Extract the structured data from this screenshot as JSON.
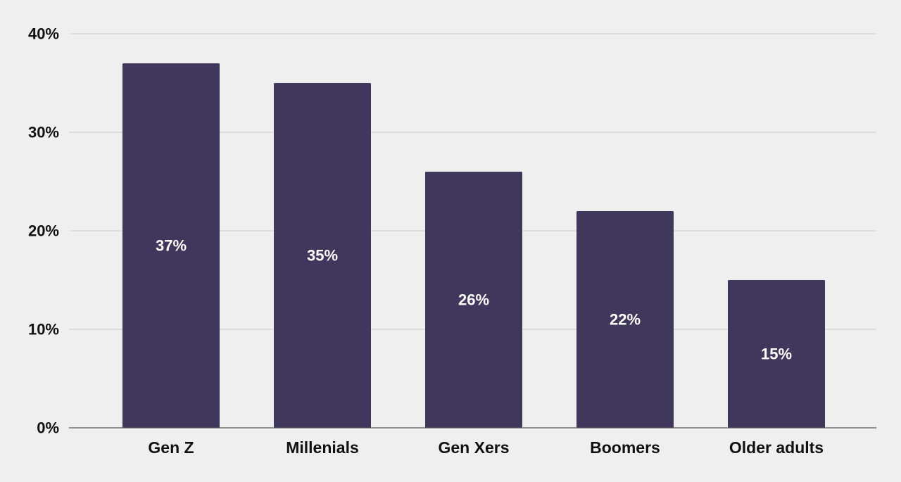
{
  "chart_data": {
    "type": "bar",
    "categories": [
      "Gen Z",
      "Millenials",
      "Gen Xers",
      "Boomers",
      "Older adults"
    ],
    "values": [
      37,
      35,
      26,
      22,
      15
    ],
    "data_labels": [
      "37%",
      "35%",
      "26%",
      "22%",
      "15%"
    ],
    "title": "",
    "xlabel": "",
    "ylabel": "",
    "ylim": [
      0,
      40
    ],
    "yticks": [
      0,
      10,
      20,
      30,
      40
    ],
    "ytick_labels": [
      "0%",
      "10%",
      "20%",
      "30%",
      "40%"
    ],
    "grid": true,
    "legend": "none",
    "colors": {
      "bar": "#40375c",
      "gridline": "#cccccc",
      "axis": "#555555",
      "background": "#efefef"
    }
  }
}
